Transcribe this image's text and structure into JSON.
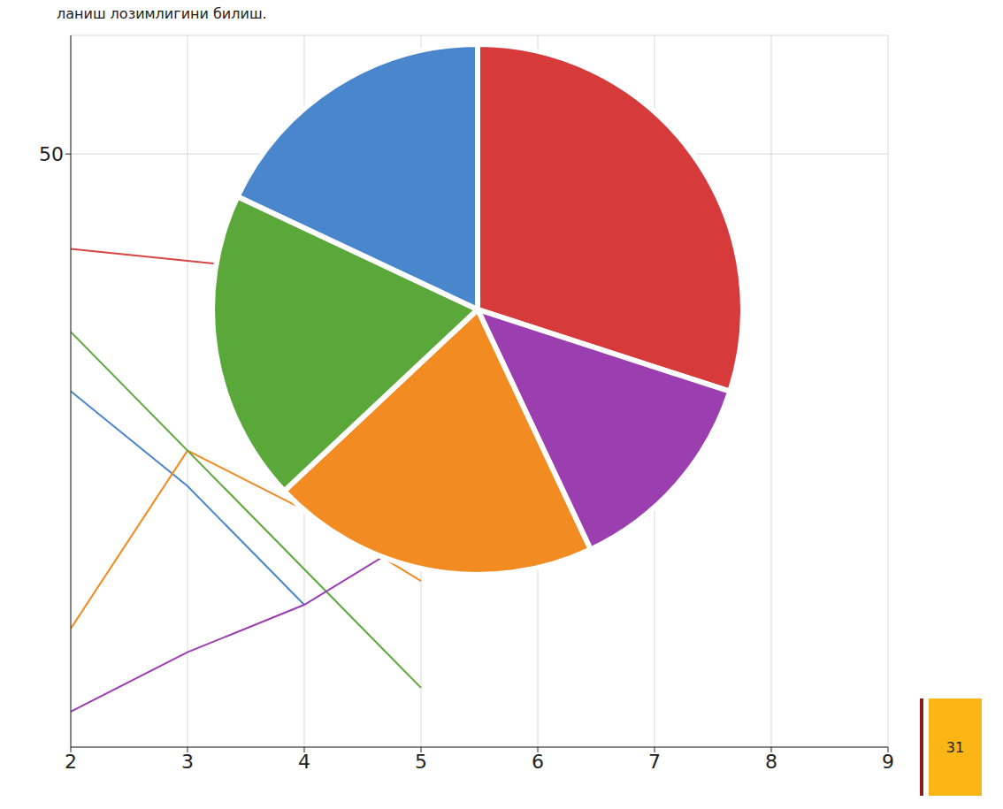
{
  "header": {
    "text": "ланиш лозимлигини билиш."
  },
  "page": 31,
  "chart_data": [
    {
      "type": "pie",
      "categories": [
        null,
        null,
        null,
        null,
        null
      ],
      "values": [
        30,
        13,
        20,
        19,
        18
      ],
      "colors": [
        "#d63a3a",
        "#9b3fb0",
        "#f28b22",
        "#5aa83a",
        "#4a86cc"
      ]
    },
    {
      "type": "line",
      "x": [
        2,
        3,
        4,
        5,
        6,
        7,
        8,
        9
      ],
      "xlim": [
        2,
        9
      ],
      "xticks": [
        2,
        3,
        4,
        5,
        6,
        7,
        8,
        9
      ],
      "ylim": [
        0,
        60
      ],
      "yticks": [
        50
      ],
      "grid": true,
      "series": [
        {
          "color": "#d64545",
          "values": [
            42,
            41,
            40,
            null,
            null,
            null,
            null,
            null
          ]
        },
        {
          "color": "#4a86cc",
          "values": [
            30,
            22,
            12,
            null,
            null,
            null,
            null,
            null
          ]
        },
        {
          "color": "#f28b22",
          "values": [
            10,
            25,
            20,
            14,
            null,
            null,
            null,
            null
          ]
        },
        {
          "color": "#5aa83a",
          "values": [
            35,
            25,
            15,
            5,
            null,
            null,
            null,
            null
          ]
        },
        {
          "color": "#9b3fb0",
          "values": [
            3,
            8,
            12,
            18,
            22,
            null,
            null,
            null
          ]
        }
      ]
    }
  ]
}
